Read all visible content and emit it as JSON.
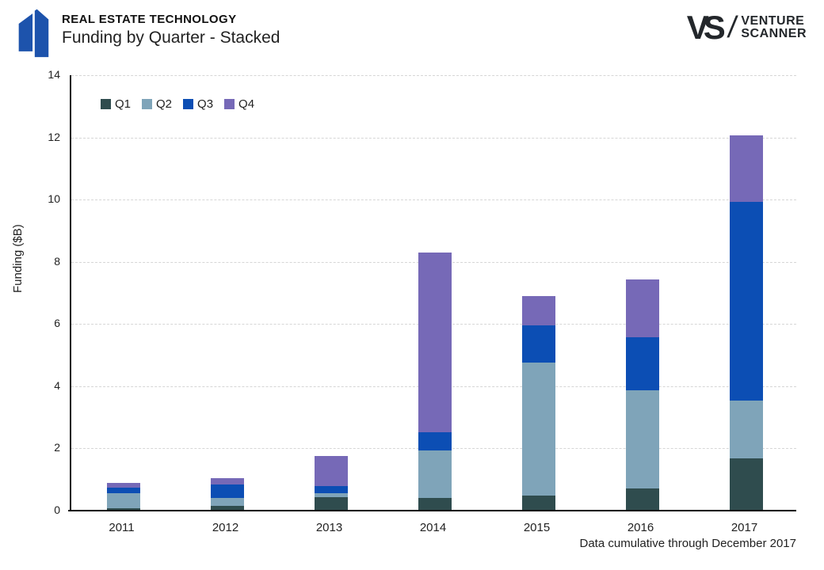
{
  "header": {
    "eyebrow": "REAL ESTATE TECHNOLOGY",
    "title": "Funding by Quarter - Stacked",
    "logo": {
      "vs": "VS",
      "slash": "/",
      "line1": "VENTURE",
      "line2": "SCANNER"
    }
  },
  "colors": {
    "q1": "#2F4C4E",
    "q2": "#7FA4B9",
    "q3": "#0C4EB4",
    "q4": "#7669B7",
    "brand_blue": "#1D53AC",
    "gridline": "#d6d6d6"
  },
  "chart_data": {
    "type": "bar",
    "stacked": true,
    "title": "Funding by Quarter - Stacked",
    "categories": [
      "2011",
      "2012",
      "2013",
      "2014",
      "2015",
      "2016",
      "2017"
    ],
    "series": [
      {
        "name": "Q1",
        "color": "#2F4C4E",
        "values": [
          0.08,
          0.16,
          0.44,
          0.41,
          0.48,
          0.71,
          1.69
        ]
      },
      {
        "name": "Q2",
        "color": "#7FA4B9",
        "values": [
          0.48,
          0.26,
          0.11,
          1.52,
          4.29,
          3.17,
          1.86
        ]
      },
      {
        "name": "Q3",
        "color": "#0C4EB4",
        "values": [
          0.17,
          0.42,
          0.25,
          0.6,
          1.18,
          1.7,
          6.37
        ]
      },
      {
        "name": "Q4",
        "color": "#7669B7",
        "values": [
          0.15,
          0.21,
          0.95,
          5.77,
          0.96,
          1.85,
          2.15
        ]
      }
    ],
    "xlabel": "",
    "ylabel": "Funding ($B)",
    "ylim": [
      0,
      14
    ],
    "yticks": [
      0,
      2,
      4,
      6,
      8,
      10,
      12,
      14
    ],
    "grid": "horizontal dashed",
    "legend_position": "top-left inside plot"
  },
  "footnote": "Data cumulative through December 2017"
}
